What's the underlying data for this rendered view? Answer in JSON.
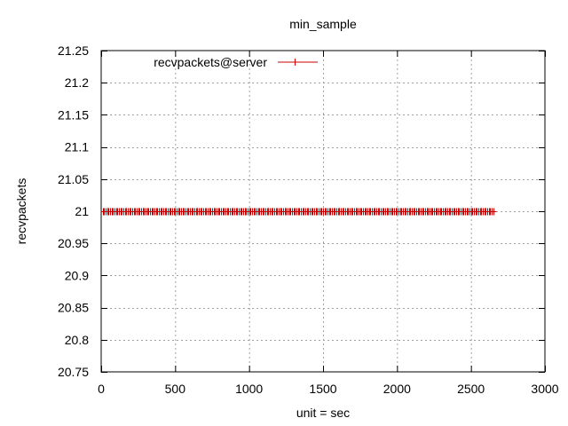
{
  "chart_data": {
    "type": "line",
    "title": "min_sample",
    "xlabel": "unit = sec",
    "ylabel": "recvpackets",
    "xlim": [
      0,
      3000
    ],
    "ylim": [
      20.75,
      21.25
    ],
    "x_ticks": [
      0,
      500,
      1000,
      1500,
      2000,
      2500,
      3000
    ],
    "y_ticks": [
      20.75,
      20.8,
      20.85,
      20.9,
      20.95,
      21,
      21.05,
      21.1,
      21.15,
      21.2,
      21.25
    ],
    "x_tick_labels": [
      "0",
      "500",
      "1000",
      "1500",
      "2000",
      "2500",
      "3000"
    ],
    "y_tick_labels": [
      "20.75",
      "20.8",
      "20.85",
      "20.9",
      "20.95",
      "21",
      "21.05",
      "21.1",
      "21.15",
      "21.2",
      "21.25"
    ],
    "grid": true,
    "legend": "top-left",
    "series": [
      {
        "name": "recvpackets@server",
        "color": "#cc0000",
        "marker": "plus",
        "x_start": 10,
        "x_end": 2650,
        "x_step": 10,
        "y_constant": 21
      }
    ]
  }
}
